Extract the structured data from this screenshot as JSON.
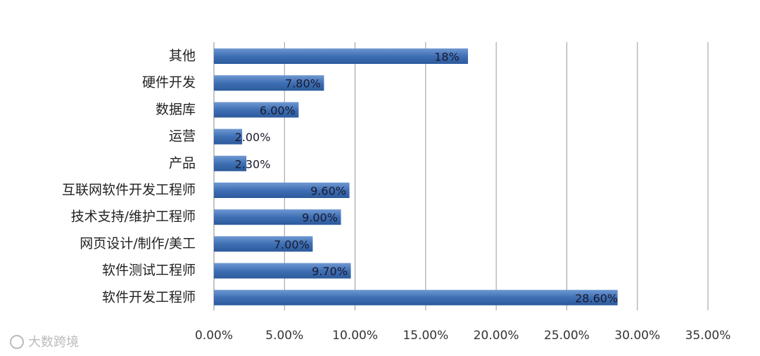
{
  "chart_data": {
    "type": "bar",
    "orientation": "horizontal",
    "categories": [
      "其他",
      "硬件开发",
      "数据库",
      "运营",
      "产品",
      "互联网软件开发工程师",
      "技术支持/维护工程师",
      "网页设计/制作/美工",
      "软件测试工程师",
      "软件开发工程师"
    ],
    "values": [
      18,
      7.8,
      6,
      2,
      2.3,
      9.6,
      9,
      7,
      9.7,
      28.6
    ],
    "value_labels": [
      "18%",
      "7.80%",
      "6.00%",
      "2.00%",
      "2.30%",
      "9.60%",
      "9.00%",
      "7.00%",
      "9.70%",
      "28.60%"
    ],
    "color": "#3f6fb4",
    "xlim": [
      0,
      35
    ],
    "xticks": [
      {
        "value": 0,
        "label": "0.00%"
      },
      {
        "value": 5,
        "label": "5.00%"
      },
      {
        "value": 10,
        "label": "10.00%"
      },
      {
        "value": 15,
        "label": "15.00%"
      },
      {
        "value": 20,
        "label": "20.00%"
      },
      {
        "value": 25,
        "label": "25.00%"
      },
      {
        "value": 30,
        "label": "30.00%"
      },
      {
        "value": 35,
        "label": "35.00%"
      }
    ],
    "grid": true,
    "watermark": "大数跨境"
  }
}
